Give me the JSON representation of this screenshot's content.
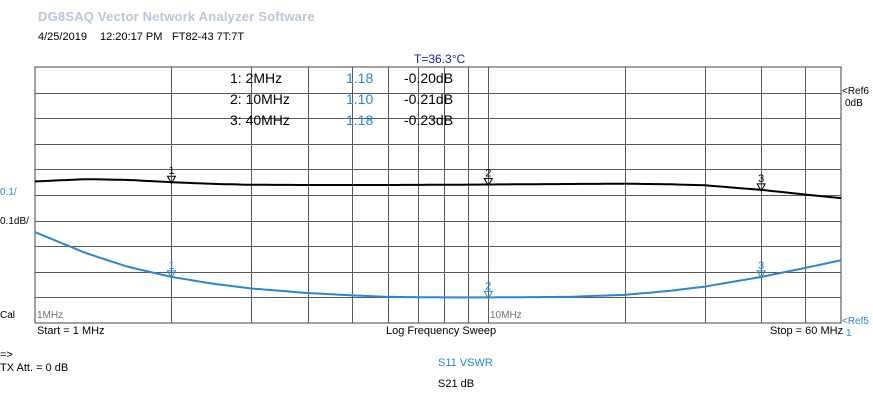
{
  "app": {
    "title": "DG8SAQ Vector Network Analyzer Software",
    "date": "4/25/2019",
    "time": "12:20:17 PM",
    "label": "FT82-43 7T:7T",
    "temperature": "T=36.3°C"
  },
  "markers": [
    {
      "name": "1: 2MHz",
      "s11": "1.18",
      "s21": "-0.20dB",
      "freq_mhz": 2
    },
    {
      "name": "2: 10MHz",
      "s11": "1.10",
      "s21": "-0.21dB",
      "freq_mhz": 10
    },
    {
      "name": "3: 40MHz",
      "s11": "1.18",
      "s21": "-0.23dB",
      "freq_mhz": 40
    }
  ],
  "labels": {
    "ref6": "<Ref6",
    "ref6_unit": "0dB",
    "scale1": "0.1/",
    "scale2": "0.1dB/",
    "cal": "Cal",
    "x_start_tick": "1MHz",
    "x_mid_tick": "10MHz",
    "ref5": "<Ref5",
    "ref5_val": "1",
    "start": "Start = 1 MHz",
    "sweep": "Log Frequency Sweep",
    "stop": "Stop = 60 MHz",
    "arrow": "=>",
    "tx_att": "TX Att.  = 0 dB",
    "trace1": "S11  VSWR",
    "trace2": "S21  dB"
  },
  "chart_data": {
    "type": "line",
    "x_scale": "log",
    "xlim": [
      1,
      60
    ],
    "x_unit": "MHz",
    "series": [
      {
        "name": "S21  dB",
        "color": "#000000",
        "ref": 0,
        "scale_per_div": 0.1,
        "x": [
          1,
          1.3,
          1.6,
          2,
          2.5,
          3,
          4,
          5,
          6,
          8,
          10,
          15,
          20,
          25,
          30,
          40,
          50,
          60
        ],
        "y": [
          -0.197,
          -0.188,
          -0.191,
          -0.2,
          -0.207,
          -0.21,
          -0.211,
          -0.211,
          -0.211,
          -0.21,
          -0.209,
          -0.207,
          -0.206,
          -0.208,
          -0.212,
          -0.23,
          -0.248,
          -0.262
        ]
      },
      {
        "name": "S11  VSWR",
        "color": "#2a86d0",
        "ref": 1,
        "scale_per_div": 0.1,
        "x": [
          1,
          1.3,
          1.6,
          2,
          2.5,
          3,
          4,
          5,
          6,
          8,
          10,
          15,
          20,
          25,
          30,
          40,
          50,
          60
        ],
        "y": [
          1.355,
          1.272,
          1.22,
          1.18,
          1.152,
          1.135,
          1.117,
          1.108,
          1.102,
          1.1,
          1.1,
          1.102,
          1.11,
          1.125,
          1.142,
          1.18,
          1.215,
          1.245
        ]
      }
    ]
  }
}
